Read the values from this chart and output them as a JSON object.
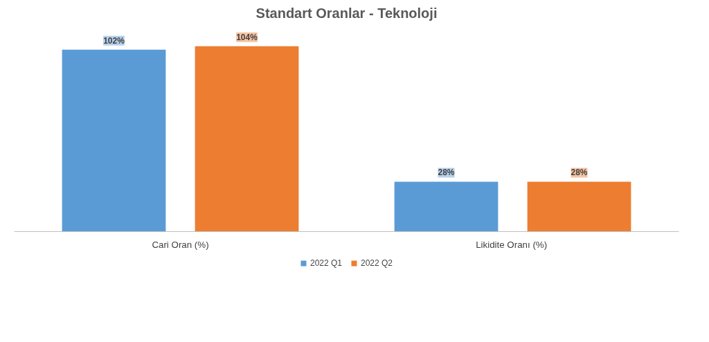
{
  "chart_data": {
    "type": "bar",
    "title": "Standart Oranlar - Teknoloji",
    "categories": [
      "Cari Oran (%)",
      "Likidite Oranı  (%)"
    ],
    "series": [
      {
        "name": "2022 Q1",
        "color": "#5b9bd5",
        "values": [
          102,
          28
        ],
        "value_labels": [
          "102%",
          "28%"
        ]
      },
      {
        "name": "2022 Q2",
        "color": "#ed7d31",
        "values": [
          104,
          28
        ],
        "value_labels": [
          "104%",
          "28%"
        ]
      }
    ],
    "legend": "bottom"
  }
}
